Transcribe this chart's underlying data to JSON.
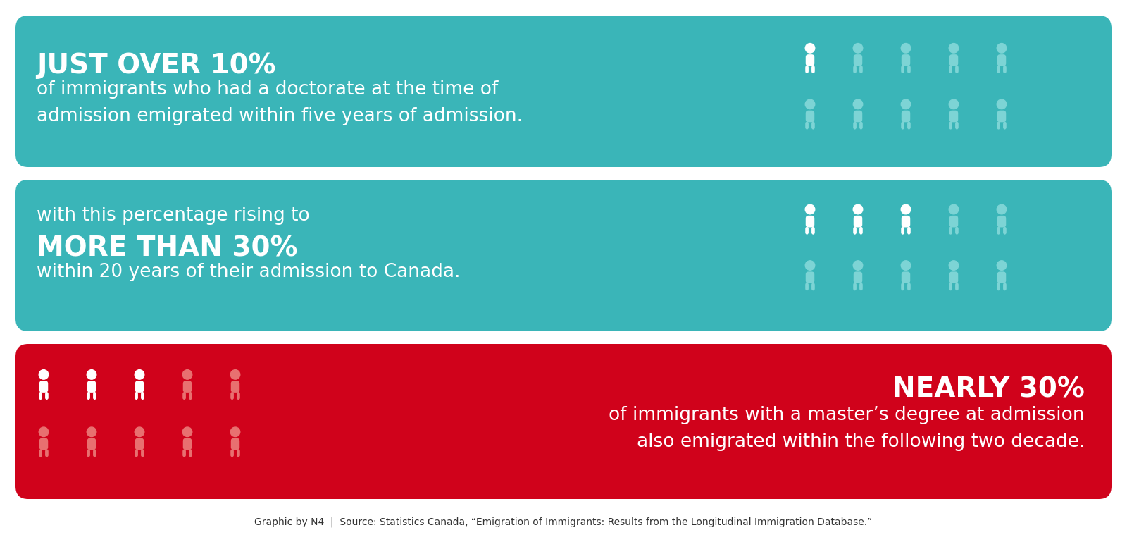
{
  "bg_color": "#ffffff",
  "teal_color": "#3ab5b8",
  "teal_dark_color": "#5dbfbf",
  "red_color": "#d0021b",
  "white": "#ffffff",
  "icon_teal_light": "#7dd4d5",
  "icon_red_light": "#e87070",
  "panel1": {
    "bold_text": "JUST OVER 10%",
    "normal_text": "of immigrants who had a doctorate at the time of\nadmission emigrated within five years of admission.",
    "white_icons": 1,
    "teal_icons": 9,
    "layout": "right_icons"
  },
  "panel2": {
    "pre_text": "with this percentage rising to",
    "bold_text": "MORE THAN 30%",
    "normal_text": "within 20 years of their admission to Canada.",
    "white_icons": 3,
    "teal_icons": 7,
    "layout": "right_icons"
  },
  "panel3": {
    "bold_text": "NEARLY 30%",
    "normal_text": "of immigrants with a master’s degree at admission\nalso emigrated within the following two decade.",
    "white_icons": 3,
    "red_icons": 7,
    "layout": "left_icons"
  },
  "footer": "Graphic by N4  |  Source: Statistics Canada, “Emigration of Immigrants: Results from the Longitudinal Immigration Database.”"
}
